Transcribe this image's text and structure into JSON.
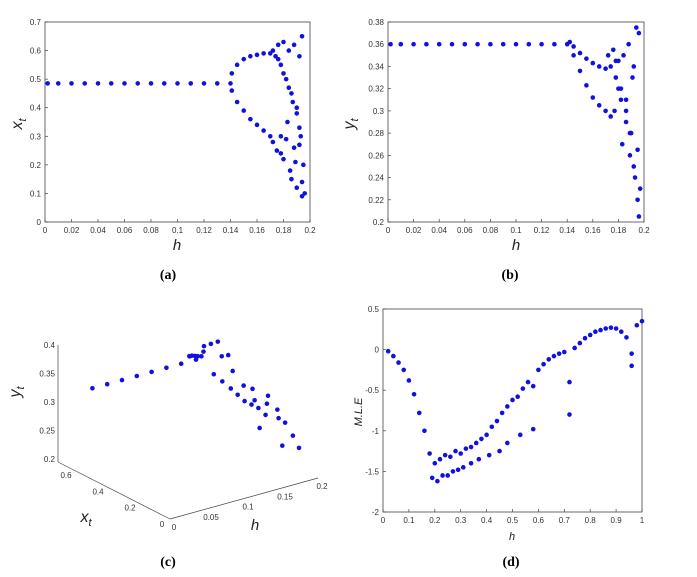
{
  "colors": {
    "dot": "#1010e0",
    "axis": "#444444"
  },
  "chart_data": [
    {
      "id": "a",
      "type": "scatter",
      "caption": "(a)",
      "xlabel": "h",
      "ylabel": "x",
      "ylabel_sub": "t",
      "xlim": [
        0,
        0.2
      ],
      "ylim": [
        0,
        0.7
      ],
      "xticks": [
        "0",
        "0.02",
        "0.04",
        "0.06",
        "0.08",
        "0.1",
        "0.12",
        "0.14",
        "0.16",
        "0.18",
        "0.2"
      ],
      "yticks": [
        "0",
        "0.1",
        "0.2",
        "0.3",
        "0.4",
        "0.5",
        "0.6",
        "0.7"
      ],
      "x": [
        0.002,
        0.01,
        0.02,
        0.03,
        0.04,
        0.05,
        0.06,
        0.07,
        0.08,
        0.09,
        0.1,
        0.11,
        0.12,
        0.13,
        0.14,
        0.141,
        0.145,
        0.15,
        0.155,
        0.16,
        0.165,
        0.17,
        0.141,
        0.145,
        0.15,
        0.155,
        0.16,
        0.165,
        0.17,
        0.172,
        0.174,
        0.176,
        0.178,
        0.18,
        0.182,
        0.184,
        0.186,
        0.188,
        0.19,
        0.192,
        0.194,
        0.172,
        0.175,
        0.178,
        0.18,
        0.183,
        0.185,
        0.188,
        0.19,
        0.192,
        0.194,
        0.176,
        0.18,
        0.184,
        0.187,
        0.19,
        0.193,
        0.195,
        0.178,
        0.182,
        0.186,
        0.189,
        0.192,
        0.194,
        0.196
      ],
      "y": [
        0.485,
        0.485,
        0.485,
        0.485,
        0.485,
        0.485,
        0.485,
        0.485,
        0.485,
        0.485,
        0.485,
        0.485,
        0.485,
        0.485,
        0.485,
        0.52,
        0.55,
        0.57,
        0.58,
        0.585,
        0.59,
        0.59,
        0.46,
        0.42,
        0.39,
        0.36,
        0.34,
        0.32,
        0.3,
        0.6,
        0.58,
        0.62,
        0.55,
        0.63,
        0.5,
        0.6,
        0.45,
        0.62,
        0.4,
        0.58,
        0.65,
        0.28,
        0.25,
        0.3,
        0.22,
        0.35,
        0.18,
        0.26,
        0.12,
        0.33,
        0.09,
        0.57,
        0.52,
        0.47,
        0.42,
        0.38,
        0.3,
        0.2,
        0.24,
        0.29,
        0.15,
        0.21,
        0.27,
        0.14,
        0.1
      ]
    },
    {
      "id": "b",
      "type": "scatter",
      "caption": "(b)",
      "xlabel": "h",
      "ylabel": "y",
      "ylabel_sub": "t",
      "xlim": [
        0,
        0.2
      ],
      "ylim": [
        0.2,
        0.38
      ],
      "xticks": [
        "0",
        "0.02",
        "0.04",
        "0.06",
        "0.08",
        "0.1",
        "0.12",
        "0.14",
        "0.16",
        "0.18",
        "0.2"
      ],
      "yticks": [
        "0.2",
        "0.22",
        "0.24",
        "0.26",
        "0.28",
        "0.3",
        "0.32",
        "0.34",
        "0.36",
        "0.38"
      ],
      "x": [
        0.002,
        0.01,
        0.02,
        0.03,
        0.04,
        0.05,
        0.06,
        0.07,
        0.08,
        0.09,
        0.1,
        0.11,
        0.12,
        0.13,
        0.14,
        0.142,
        0.145,
        0.15,
        0.155,
        0.16,
        0.165,
        0.17,
        0.145,
        0.15,
        0.155,
        0.16,
        0.165,
        0.17,
        0.172,
        0.174,
        0.176,
        0.178,
        0.18,
        0.182,
        0.184,
        0.186,
        0.188,
        0.19,
        0.192,
        0.194,
        0.196,
        0.174,
        0.177,
        0.18,
        0.183,
        0.186,
        0.189,
        0.191,
        0.193,
        0.195,
        0.196,
        0.178,
        0.182,
        0.186,
        0.189,
        0.192,
        0.195,
        0.197
      ],
      "y": [
        0.36,
        0.36,
        0.36,
        0.36,
        0.36,
        0.36,
        0.36,
        0.36,
        0.36,
        0.36,
        0.36,
        0.36,
        0.36,
        0.36,
        0.36,
        0.362,
        0.358,
        0.352,
        0.347,
        0.343,
        0.34,
        0.338,
        0.35,
        0.336,
        0.323,
        0.312,
        0.305,
        0.3,
        0.35,
        0.34,
        0.355,
        0.33,
        0.345,
        0.31,
        0.35,
        0.29,
        0.36,
        0.28,
        0.34,
        0.375,
        0.37,
        0.295,
        0.3,
        0.32,
        0.27,
        0.31,
        0.26,
        0.33,
        0.24,
        0.22,
        0.205,
        0.345,
        0.32,
        0.3,
        0.28,
        0.25,
        0.265,
        0.23
      ]
    },
    {
      "id": "c",
      "type": "scatter3d",
      "caption": "(c)",
      "xlabel": "h",
      "ylabel": "x",
      "ylabel_sub": "t",
      "zlabel": "y",
      "zlabel_sub": "t",
      "hticks": [
        "0",
        "0.05",
        "0.1",
        "0.15",
        "0.2"
      ],
      "xticks": [
        "0",
        "0.2",
        "0.4",
        "0.6"
      ],
      "zticks": [
        "0.2",
        "0.25",
        "0.3",
        "0.35",
        "0.4"
      ],
      "h": [
        0.0,
        0.02,
        0.04,
        0.06,
        0.08,
        0.1,
        0.12,
        0.14,
        0.145,
        0.15,
        0.155,
        0.16,
        0.165,
        0.17,
        0.175,
        0.18,
        0.185,
        0.19,
        0.15,
        0.155,
        0.16,
        0.165,
        0.17,
        0.175,
        0.18,
        0.185,
        0.19,
        0.178,
        0.182,
        0.186,
        0.19,
        0.194,
        0.18,
        0.184,
        0.188,
        0.192,
        0.196,
        0.176,
        0.186,
        0.195,
        0.198
      ],
      "xt": [
        0.485,
        0.485,
        0.485,
        0.485,
        0.485,
        0.485,
        0.485,
        0.485,
        0.55,
        0.57,
        0.58,
        0.585,
        0.59,
        0.59,
        0.6,
        0.62,
        0.6,
        0.58,
        0.42,
        0.39,
        0.36,
        0.34,
        0.32,
        0.3,
        0.28,
        0.25,
        0.2,
        0.5,
        0.45,
        0.4,
        0.35,
        0.3,
        0.22,
        0.18,
        0.15,
        0.12,
        0.1,
        0.45,
        0.3,
        0.2,
        0.4
      ],
      "yt": [
        0.36,
        0.36,
        0.36,
        0.36,
        0.36,
        0.36,
        0.36,
        0.36,
        0.355,
        0.35,
        0.348,
        0.345,
        0.342,
        0.34,
        0.345,
        0.35,
        0.355,
        0.36,
        0.34,
        0.33,
        0.32,
        0.31,
        0.3,
        0.295,
        0.29,
        0.3,
        0.28,
        0.35,
        0.33,
        0.31,
        0.29,
        0.27,
        0.32,
        0.3,
        0.28,
        0.26,
        0.24,
        0.36,
        0.25,
        0.23,
        0.3
      ]
    },
    {
      "id": "d",
      "type": "scatter",
      "caption": "(d)",
      "xlabel": "h",
      "ylabel": "M.L.E",
      "xlim": [
        0,
        1
      ],
      "ylim": [
        -2,
        0.5
      ],
      "xticks": [
        "0",
        "0.1",
        "0.2",
        "0.3",
        "0.4",
        "0.5",
        "0.6",
        "0.7",
        "0.8",
        "0.9",
        "1"
      ],
      "yticks": [
        "-2",
        "-1.5",
        "-1",
        "-0.5",
        "0",
        "0.5"
      ],
      "x": [
        0.02,
        0.04,
        0.06,
        0.08,
        0.1,
        0.12,
        0.14,
        0.16,
        0.18,
        0.2,
        0.22,
        0.24,
        0.26,
        0.28,
        0.3,
        0.32,
        0.34,
        0.36,
        0.38,
        0.4,
        0.42,
        0.44,
        0.46,
        0.48,
        0.5,
        0.52,
        0.54,
        0.56,
        0.58,
        0.6,
        0.62,
        0.64,
        0.66,
        0.68,
        0.7,
        0.72,
        0.74,
        0.76,
        0.78,
        0.8,
        0.82,
        0.84,
        0.86,
        0.88,
        0.9,
        0.92,
        0.94,
        0.96,
        0.98,
        1.0,
        0.19,
        0.21,
        0.23,
        0.25,
        0.27,
        0.29,
        0.31,
        0.34,
        0.37,
        0.41,
        0.45,
        0.48,
        0.53,
        0.58,
        0.72,
        0.96
      ],
      "y": [
        -0.02,
        -0.08,
        -0.16,
        -0.25,
        -0.38,
        -0.55,
        -0.78,
        -1.0,
        -1.28,
        -1.4,
        -1.35,
        -1.3,
        -1.32,
        -1.25,
        -1.28,
        -1.22,
        -1.2,
        -1.15,
        -1.1,
        -1.05,
        -0.95,
        -0.88,
        -0.78,
        -0.7,
        -0.62,
        -0.58,
        -0.48,
        -0.4,
        -0.45,
        -0.25,
        -0.18,
        -0.12,
        -0.08,
        -0.05,
        -0.03,
        -0.4,
        0.02,
        0.08,
        0.14,
        0.18,
        0.22,
        0.24,
        0.26,
        0.27,
        0.26,
        0.22,
        0.15,
        -0.05,
        0.3,
        0.35,
        -1.58,
        -1.62,
        -1.55,
        -1.55,
        -1.5,
        -1.48,
        -1.45,
        -1.4,
        -1.35,
        -1.3,
        -1.25,
        -1.15,
        -1.05,
        -0.98,
        -0.8,
        -0.2
      ]
    }
  ]
}
